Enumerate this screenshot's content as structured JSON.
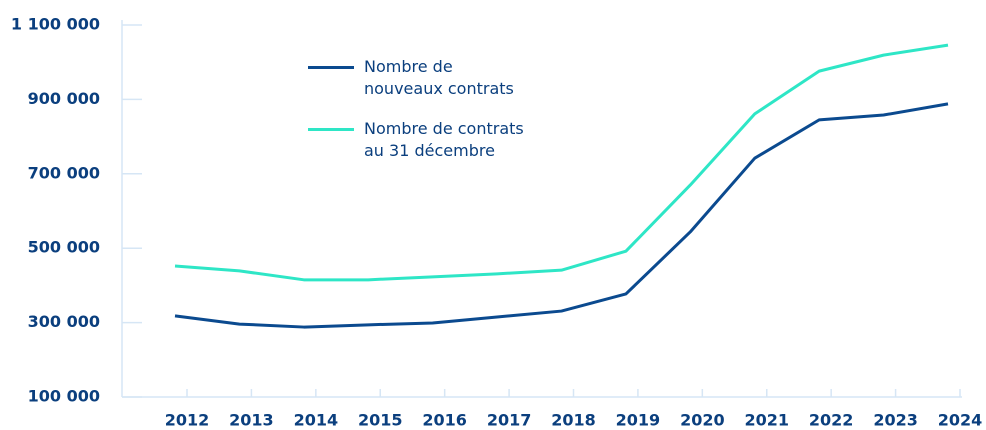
{
  "chart_data": {
    "type": "line",
    "x": [
      2012,
      2013,
      2014,
      2015,
      2016,
      2017,
      2018,
      2019,
      2020,
      2021,
      2022,
      2023,
      2024
    ],
    "series": [
      {
        "name": "Nombre de\nnouveaux contrats",
        "color": "#0b4a8f",
        "values": [
          318000,
          296000,
          288000,
          294000,
          299000,
          315000,
          331000,
          377000,
          544000,
          742000,
          845000,
          858000,
          888000
        ]
      },
      {
        "name": "Nombre de contrats\nau 31 décembre",
        "color": "#2ee6c6",
        "values": [
          452000,
          439000,
          415000,
          415000,
          423000,
          431000,
          441000,
          492000,
          670000,
          861000,
          976000,
          1019000,
          1046000
        ]
      }
    ],
    "xlim": [
      2012,
      2024
    ],
    "xticks": [
      2012,
      2013,
      2014,
      2015,
      2016,
      2017,
      2018,
      2019,
      2020,
      2021,
      2022,
      2023,
      2024
    ],
    "ylim": [
      100000,
      1100000
    ],
    "yticks": [
      {
        "value": 100000,
        "label": "100 000"
      },
      {
        "value": 300000,
        "label": "300 000"
      },
      {
        "value": 500000,
        "label": "500 000"
      },
      {
        "value": 700000,
        "label": "700 000"
      },
      {
        "value": 900000,
        "label": "900 000"
      },
      {
        "value": 1100000,
        "label": "1 100 000"
      }
    ],
    "grid": false
  }
}
